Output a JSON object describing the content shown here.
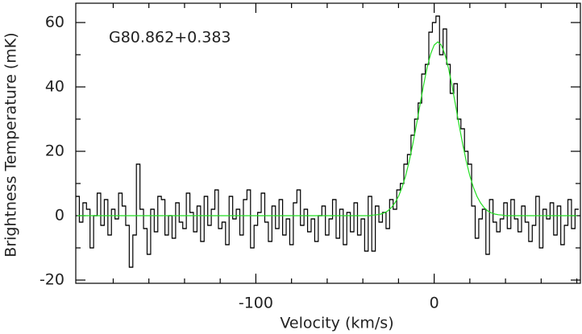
{
  "chart_data": {
    "type": "step",
    "annotation": "G80.862+0.383",
    "xlabel": "Velocity (km/s)",
    "ylabel": "Brightness Temperature (mK)",
    "xlim": [
      -201,
      82
    ],
    "ylim": [
      -21,
      66
    ],
    "xticks": [
      -100,
      0
    ],
    "yticks": [
      -20,
      0,
      20,
      40,
      60
    ],
    "xminorticks": [
      -180,
      -160,
      -140,
      -120,
      -80,
      -60,
      -40,
      -20,
      20,
      40,
      60,
      80
    ],
    "yminorticks": [
      -10,
      10,
      30,
      50
    ],
    "x": [
      -200,
      -198,
      -196,
      -194,
      -192,
      -190,
      -188,
      -186,
      -184,
      -182,
      -180,
      -178,
      -176,
      -174,
      -172,
      -170,
      -168,
      -166,
      -164,
      -162,
      -160,
      -158,
      -156,
      -154,
      -152,
      -150,
      -148,
      -146,
      -144,
      -142,
      -140,
      -138,
      -136,
      -134,
      -132,
      -130,
      -128,
      -126,
      -124,
      -122,
      -120,
      -118,
      -116,
      -114,
      -112,
      -110,
      -108,
      -106,
      -104,
      -102,
      -100,
      -98,
      -96,
      -94,
      -92,
      -90,
      -88,
      -86,
      -84,
      -82,
      -80,
      -78,
      -76,
      -74,
      -72,
      -70,
      -68,
      -66,
      -64,
      -62,
      -60,
      -58,
      -56,
      -54,
      -52,
      -50,
      -48,
      -46,
      -44,
      -42,
      -40,
      -38,
      -36,
      -34,
      -32,
      -30,
      -28,
      -26,
      -24,
      -22,
      -20,
      -18,
      -16,
      -14,
      -12,
      -10,
      -8,
      -6,
      -4,
      -2,
      0,
      2,
      4,
      6,
      8,
      10,
      12,
      14,
      16,
      18,
      20,
      22,
      24,
      26,
      28,
      30,
      32,
      34,
      36,
      38,
      40,
      42,
      44,
      46,
      48,
      50,
      52,
      54,
      56,
      58,
      60,
      62,
      64,
      66,
      68,
      70,
      72,
      74,
      76,
      78,
      80
    ],
    "series": [
      {
        "color": "#000000",
        "style": "step",
        "values": [
          6,
          -2,
          4,
          2,
          -10,
          0,
          7,
          -3,
          5,
          -6,
          2,
          -1,
          7,
          3,
          -3,
          -16,
          -6,
          16,
          2,
          -4,
          -12,
          2,
          -5,
          6,
          5,
          -6,
          0,
          -7,
          4,
          -2,
          -4,
          7,
          1,
          -5,
          3,
          -8,
          6,
          -3,
          2,
          8,
          -4,
          -2,
          -9,
          6,
          -1,
          2,
          -6,
          5,
          8,
          -10,
          -3,
          1,
          7,
          -2,
          -8,
          3,
          -4,
          5,
          -6,
          -1,
          -9,
          4,
          8,
          -3,
          2,
          -5,
          -1,
          -8,
          0,
          3,
          -6,
          -1,
          5,
          -7,
          2,
          -9,
          1,
          -5,
          4,
          -6,
          -1,
          -11,
          6,
          -11,
          3,
          -2,
          1,
          -4,
          5,
          2,
          8,
          10,
          16,
          19,
          25,
          30,
          35,
          44,
          47,
          57,
          60,
          62,
          50,
          58,
          47,
          38,
          41,
          30,
          27,
          20,
          16,
          3,
          -7,
          -1,
          2,
          -12,
          5,
          -2,
          -5,
          -1,
          4,
          -4,
          5,
          -1,
          -5,
          3,
          -2,
          -8,
          -3,
          6,
          -10,
          2,
          -1,
          4,
          -6,
          3,
          -9,
          -3,
          5,
          -4,
          2
        ]
      },
      {
        "color": "#22dd22",
        "style": "line",
        "values": [
          0,
          0,
          0,
          0,
          0,
          0,
          0,
          0,
          0,
          0,
          0,
          0,
          0,
          0,
          0,
          0,
          0,
          0,
          0,
          0,
          0,
          0,
          0,
          0,
          0,
          0,
          0,
          0,
          0,
          0,
          0,
          0,
          0,
          0,
          0,
          0,
          0,
          0,
          0,
          0,
          0,
          0,
          0,
          0,
          0,
          0,
          0,
          0,
          0,
          0,
          0,
          0,
          0,
          0,
          0,
          0,
          0,
          0,
          0,
          0,
          0,
          0,
          0,
          0,
          0,
          0,
          0,
          0,
          0,
          0,
          0,
          0,
          0,
          0,
          0,
          0,
          0,
          0,
          0,
          0,
          0,
          0,
          0,
          0.2,
          0.3,
          0.5,
          0.9,
          1.5,
          2.5,
          4.0,
          6.0,
          8.8,
          12.4,
          16.9,
          22.2,
          28.1,
          34.3,
          40.4,
          45.9,
          50.2,
          53.0,
          54,
          53.0,
          50.2,
          45.9,
          40.4,
          34.3,
          28.1,
          22.2,
          16.9,
          12.4,
          8.8,
          6.0,
          4.0,
          2.5,
          1.5,
          0.9,
          0.5,
          0.3,
          0.2,
          0,
          0,
          0,
          0,
          0,
          0,
          0,
          0,
          0,
          0,
          0,
          0,
          0,
          0,
          0,
          0,
          0,
          0,
          0,
          0,
          0
        ]
      }
    ]
  }
}
